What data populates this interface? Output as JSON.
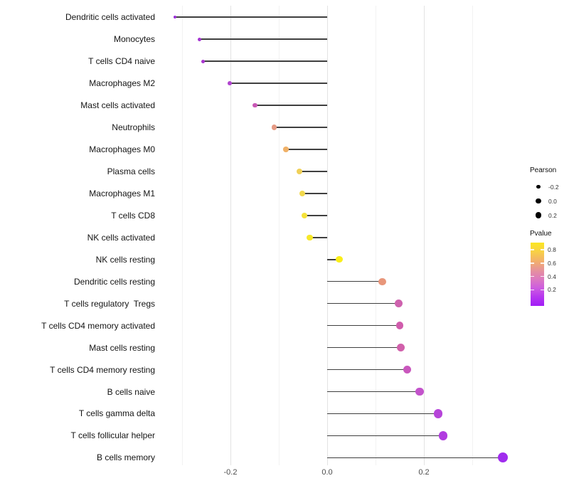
{
  "chart_data": {
    "type": "scatter",
    "variant": "horizontal-lollipop",
    "title": "",
    "xlabel": "",
    "ylabel": "",
    "xlim": [
      -0.345,
      0.38
    ],
    "baseline": 0,
    "grid": "vertical major and minor, light gray on white",
    "legend_position": "right",
    "categories": [
      "Dendritic cells activated",
      "Monocytes",
      "T cells CD4 naive",
      "Macrophages M2",
      "Mast cells activated",
      "Neutrophils",
      "Macrophages M0",
      "Plasma cells",
      "Macrophages M1",
      "T cells CD8",
      "NK cells activated",
      "NK cells resting",
      "Dendritic cells resting",
      "T cells regulatory  Tregs",
      "T cells CD4 memory activated",
      "Mast cells resting",
      "T cells CD4 memory resting",
      "B cells naive",
      "T cells gamma delta",
      "T cells follicular helper",
      "B cells memory"
    ],
    "series": [
      {
        "name": "Pearson",
        "values": [
          -0.315,
          -0.264,
          -0.257,
          -0.202,
          -0.149,
          -0.109,
          -0.085,
          -0.058,
          -0.052,
          -0.047,
          -0.036,
          0.025,
          0.114,
          0.148,
          0.15,
          0.152,
          0.166,
          0.191,
          0.229,
          0.24,
          0.363
        ]
      }
    ],
    "point_colors": [
      "#9b2fd8",
      "#a534d2",
      "#a936cf",
      "#b144cf",
      "#c857b5",
      "#e59a84",
      "#f0b168",
      "#f0d058",
      "#f2d94e",
      "#f5e23a",
      "#f7e829",
      "#faee18",
      "#e8967a",
      "#ce62ae",
      "#d05cac",
      "#d160ab",
      "#c957bd",
      "#c353cb",
      "#b644d9",
      "#b13be0",
      "#a02cee"
    ],
    "x_ticks": {
      "major": [
        -0.2,
        0.0,
        0.2
      ],
      "minor": [
        -0.3,
        -0.1,
        0.1,
        0.3
      ]
    },
    "x_tick_labels": [
      "-0.2",
      "0.0",
      "0.2"
    ],
    "legends": {
      "size": {
        "title": "Pearson",
        "entry_labels": [
          "-0.2",
          "0.0",
          "0.2"
        ],
        "entry_diameters": [
          5.3,
          7.2,
          8.8
        ],
        "dot_color": "#000000"
      },
      "color": {
        "title": "Pvalue",
        "tick_labels": [
          "0.8",
          "0.6",
          "0.4",
          "0.2"
        ],
        "gradient_top_to_bottom": [
          {
            "pos": 0,
            "color": "#fbe722"
          },
          {
            "pos": 14,
            "color": "#f8d145"
          },
          {
            "pos": 30,
            "color": "#f2ae6e"
          },
          {
            "pos": 45,
            "color": "#e590a0"
          },
          {
            "pos": 58,
            "color": "#dc79c1"
          },
          {
            "pos": 72,
            "color": "#cd5ce0"
          },
          {
            "pos": 86,
            "color": "#b636ef"
          },
          {
            "pos": 100,
            "color": "#a11df6"
          }
        ]
      }
    },
    "style_colors": {
      "stem": "#3f3f3f",
      "grid_major": "#e3e3e3",
      "grid_minor": "#f2f2f2",
      "axis_text": "#4d4d4d",
      "label_text": "#141414",
      "background": "#ffffff"
    }
  }
}
